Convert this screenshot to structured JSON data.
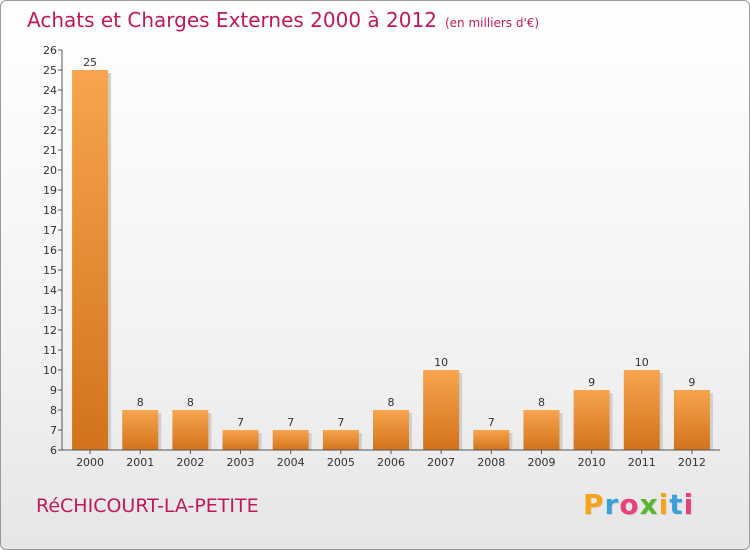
{
  "title": "Achats et Charges Externes 2000 à 2012",
  "subtitle": "(en milliers d'€)",
  "place": "RéCHICOURT-LA-PETITE",
  "logo": {
    "letters": [
      "P",
      "r",
      "o",
      "x",
      "i",
      "t",
      "i"
    ],
    "colors": [
      "#f7a21b",
      "#3aa0d9",
      "#e8407a",
      "#5cb531",
      "#f7a21b",
      "#3aa0d9",
      "#e8407a"
    ]
  },
  "colors": {
    "bar_top": "#f7a54e",
    "bar_bottom": "#d2731c",
    "title": "#c2185b"
  },
  "chart_data": {
    "type": "bar",
    "categories": [
      "2000",
      "2001",
      "2002",
      "2003",
      "2004",
      "2005",
      "2006",
      "2007",
      "2008",
      "2009",
      "2010",
      "2011",
      "2012"
    ],
    "values": [
      25,
      8,
      8,
      7,
      7,
      7,
      8,
      10,
      7,
      8,
      9,
      10,
      9
    ],
    "ylim": [
      6,
      26
    ],
    "yticks": [
      6,
      7,
      8,
      9,
      10,
      11,
      12,
      13,
      14,
      15,
      16,
      17,
      18,
      19,
      20,
      21,
      22,
      23,
      24,
      25,
      26
    ],
    "grid": false,
    "data_labels": true
  }
}
